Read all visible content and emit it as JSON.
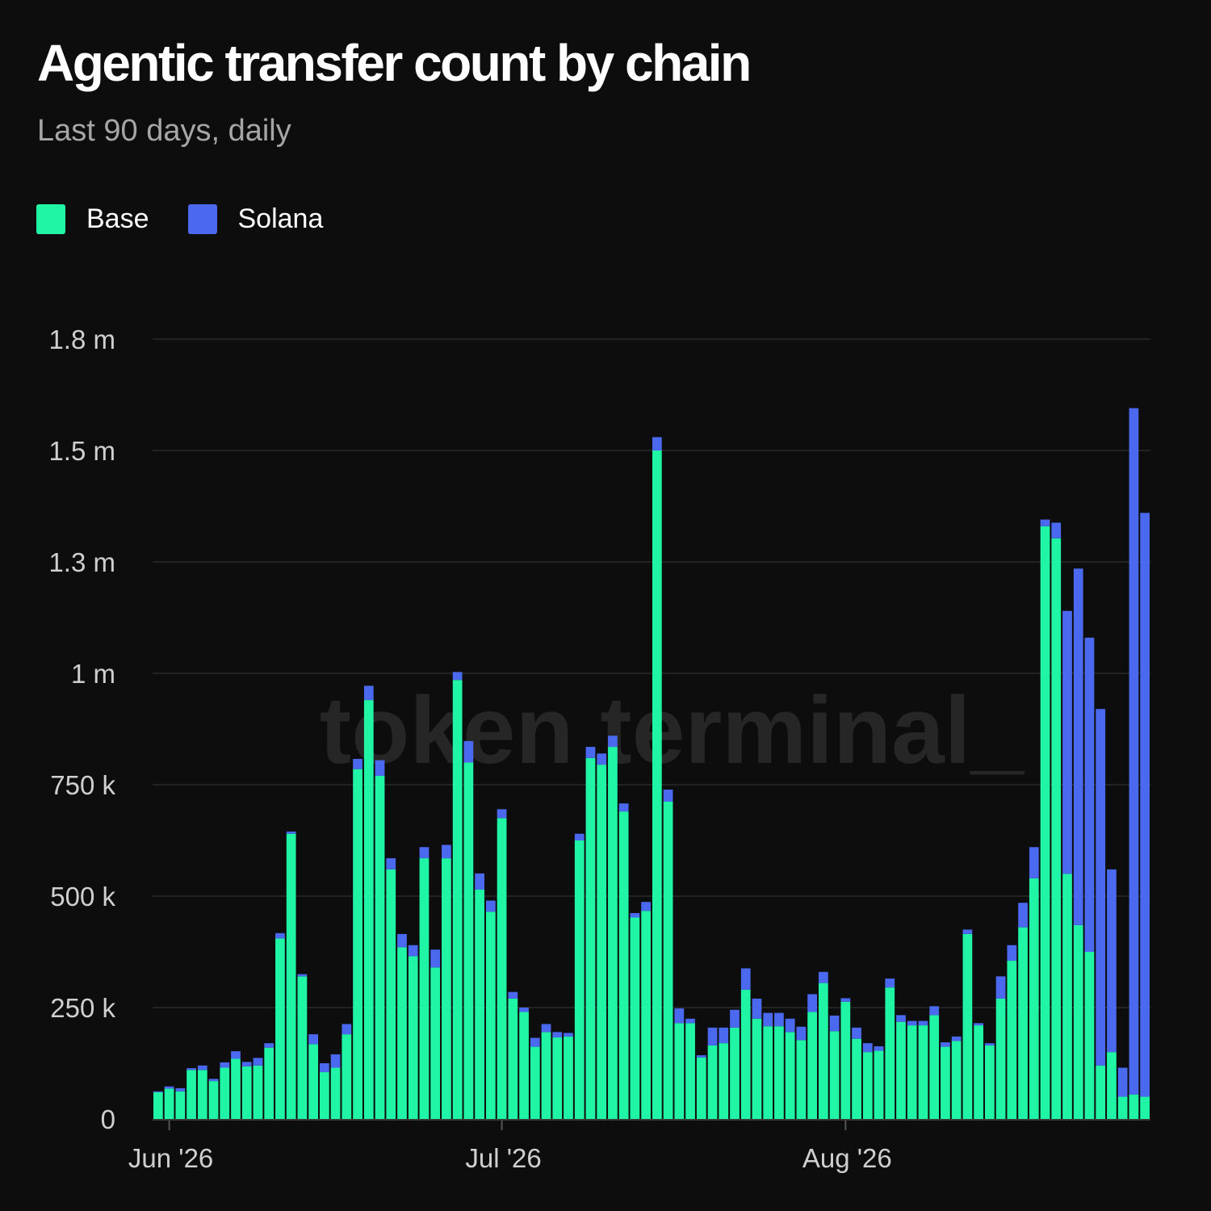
{
  "title": "Agentic transfer count by chain",
  "subtitle": "Last 90 days, daily",
  "watermark": "token terminal_",
  "colors": {
    "background": "#0d0d0d",
    "base": "#1ff5a5",
    "solana": "#4b69ee",
    "grid": "#2a2a2a",
    "axis_text": "#cfcfcf",
    "watermark": "#262626"
  },
  "chart_data": {
    "type": "bar",
    "stacked": true,
    "y_tick_labels": [
      "0",
      "250 k",
      "500 k",
      "750 k",
      "1 m",
      "1.3 m",
      "1.5 m",
      "1.8 m"
    ],
    "y_tick_values": [
      0,
      250000,
      500000,
      750000,
      1000000,
      1250000,
      1500000,
      1750000
    ],
    "ylim": [
      0,
      1750000
    ],
    "grid": true,
    "legend_position": "top-left",
    "x_tick_labels": [
      {
        "label": "Jun '26",
        "date": "2026-06-01"
      },
      {
        "label": "Jul '26",
        "date": "2026-07-01"
      },
      {
        "label": "Aug '26",
        "date": "2026-08-01"
      }
    ],
    "x": [
      "2026-05-31",
      "2026-06-01",
      "2026-06-02",
      "2026-06-03",
      "2026-06-04",
      "2026-06-05",
      "2026-06-06",
      "2026-06-07",
      "2026-06-08",
      "2026-06-09",
      "2026-06-10",
      "2026-06-11",
      "2026-06-12",
      "2026-06-13",
      "2026-06-14",
      "2026-06-15",
      "2026-06-16",
      "2026-06-17",
      "2026-06-18",
      "2026-06-19",
      "2026-06-20",
      "2026-06-21",
      "2026-06-22",
      "2026-06-23",
      "2026-06-24",
      "2026-06-25",
      "2026-06-26",
      "2026-06-27",
      "2026-06-28",
      "2026-06-29",
      "2026-06-30",
      "2026-07-01",
      "2026-07-02",
      "2026-07-03",
      "2026-07-04",
      "2026-07-05",
      "2026-07-06",
      "2026-07-07",
      "2026-07-08",
      "2026-07-09",
      "2026-07-10",
      "2026-07-11",
      "2026-07-12",
      "2026-07-13",
      "2026-07-14",
      "2026-07-15",
      "2026-07-16",
      "2026-07-17",
      "2026-07-18",
      "2026-07-19",
      "2026-07-20",
      "2026-07-21",
      "2026-07-22",
      "2026-07-23",
      "2026-07-24",
      "2026-07-25",
      "2026-07-26",
      "2026-07-27",
      "2026-07-28",
      "2026-07-29",
      "2026-07-30",
      "2026-07-31",
      "2026-08-01",
      "2026-08-02",
      "2026-08-03",
      "2026-08-04",
      "2026-08-05",
      "2026-08-06",
      "2026-08-07",
      "2026-08-08",
      "2026-08-09",
      "2026-08-10",
      "2026-08-11",
      "2026-08-12",
      "2026-08-13",
      "2026-08-14",
      "2026-08-15",
      "2026-08-16",
      "2026-08-17",
      "2026-08-18",
      "2026-08-19",
      "2026-08-20",
      "2026-08-21",
      "2026-08-22",
      "2026-08-23",
      "2026-08-24",
      "2026-08-25",
      "2026-08-26",
      "2026-08-27",
      "2026-08-28"
    ],
    "series": [
      {
        "name": "Base",
        "values": [
          60000,
          68000,
          62000,
          110000,
          110000,
          85000,
          115000,
          135000,
          118000,
          120000,
          160000,
          405000,
          640000,
          320000,
          168000,
          105000,
          115000,
          190000,
          785000,
          940000,
          770000,
          560000,
          385000,
          365000,
          585000,
          340000,
          585000,
          985000,
          800000,
          515000,
          465000,
          675000,
          270000,
          240000,
          162000,
          195000,
          183000,
          185000,
          625000,
          810000,
          795000,
          835000,
          690000,
          452000,
          467000,
          1500000,
          712000,
          215000,
          215000,
          138000,
          165000,
          170000,
          205000,
          290000,
          225000,
          208000,
          208000,
          195000,
          177000,
          240000,
          305000,
          197000,
          263000,
          180000,
          150000,
          153000,
          295000,
          218000,
          210000,
          210000,
          233000,
          162000,
          175000,
          415000,
          210000,
          165000,
          270000,
          355000,
          430000,
          540000,
          1330000,
          1303000,
          550000,
          435000,
          375000,
          120000,
          150000,
          50000,
          55000,
          50000
        ]
      },
      {
        "name": "Solana",
        "values": [
          2000,
          5000,
          7000,
          4000,
          10000,
          5000,
          12000,
          17000,
          10000,
          17000,
          10000,
          12000,
          5000,
          5000,
          22000,
          20000,
          30000,
          23000,
          23000,
          32000,
          35000,
          25000,
          30000,
          25000,
          25000,
          40000,
          30000,
          18000,
          48000,
          36000,
          25000,
          20000,
          15000,
          10000,
          20000,
          18000,
          12000,
          8000,
          15000,
          25000,
          25000,
          25000,
          18000,
          10000,
          20000,
          30000,
          27000,
          33000,
          10000,
          5000,
          40000,
          35000,
          40000,
          48000,
          45000,
          30000,
          30000,
          30000,
          30000,
          40000,
          25000,
          35000,
          8000,
          25000,
          20000,
          10000,
          20000,
          15000,
          10000,
          10000,
          20000,
          10000,
          10000,
          10000,
          5000,
          5000,
          50000,
          35000,
          55000,
          70000,
          15000,
          35000,
          590000,
          800000,
          705000,
          800000,
          410000,
          65000,
          1540000,
          1310000
        ]
      }
    ]
  }
}
